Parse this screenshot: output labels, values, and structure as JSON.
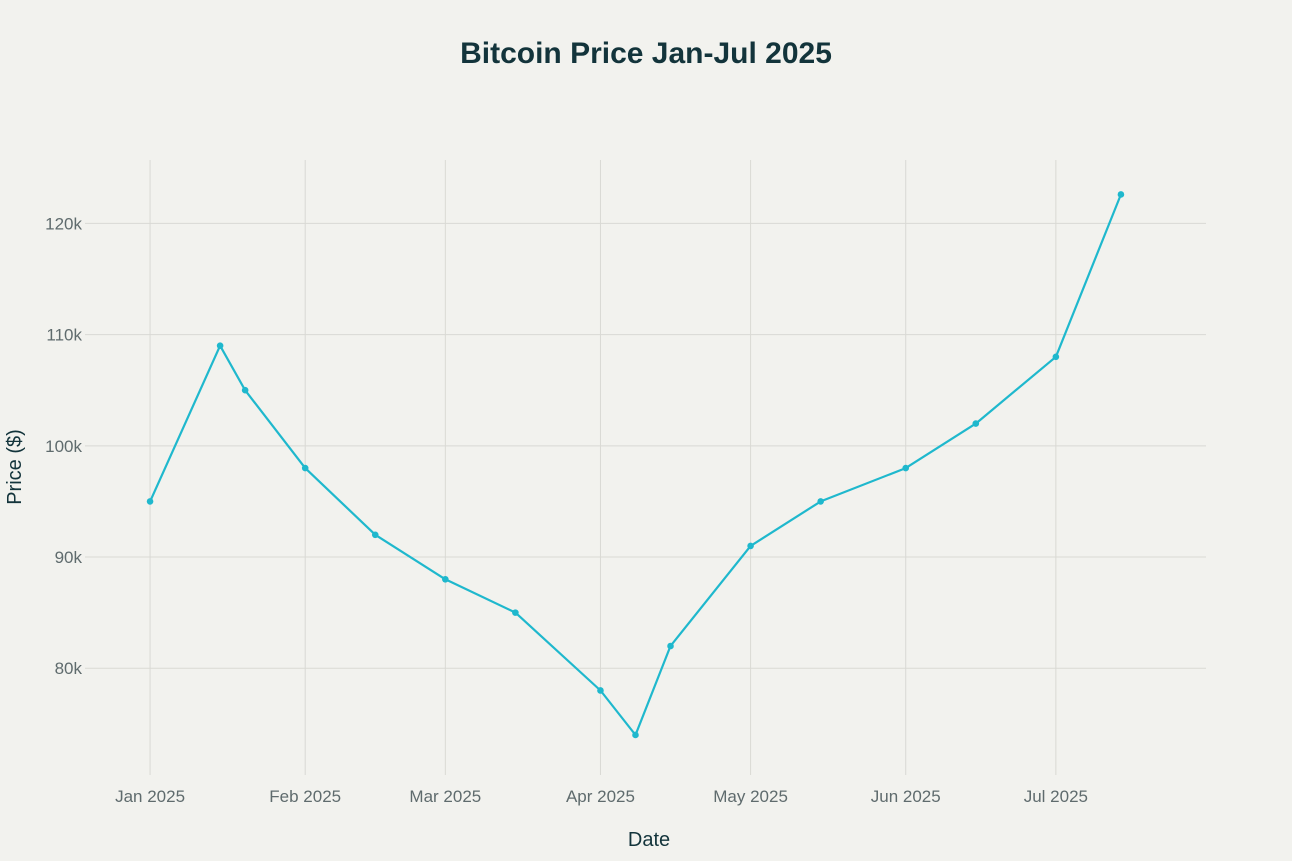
{
  "colors": {
    "background": "#f2f2ee",
    "series": "#1fb8cd",
    "grid": "#d9d9d4",
    "title": "#13343b",
    "tick": "#5f6b6d"
  },
  "chart_data": {
    "type": "line",
    "title": "Bitcoin Price Jan-Jul 2025",
    "xlabel": "Date",
    "ylabel": "Price ($)",
    "x_tick_labels": [
      {
        "date": "2025-01-01",
        "label": "Jan 2025"
      },
      {
        "date": "2025-02-01",
        "label": "Feb 2025"
      },
      {
        "date": "2025-03-01",
        "label": "Mar 2025"
      },
      {
        "date": "2025-04-01",
        "label": "Apr 2025"
      },
      {
        "date": "2025-05-01",
        "label": "May 2025"
      },
      {
        "date": "2025-06-01",
        "label": "Jun 2025"
      },
      {
        "date": "2025-07-01",
        "label": "Jul 2025"
      }
    ],
    "y_ticks": [
      {
        "value": 80000,
        "label": "80k"
      },
      {
        "value": 90000,
        "label": "90k"
      },
      {
        "value": 100000,
        "label": "100k"
      },
      {
        "value": 110000,
        "label": "110k"
      },
      {
        "value": 120000,
        "label": "120k"
      }
    ],
    "xlim": [
      "2024-12-19",
      "2025-07-31"
    ],
    "ylim": [
      70400,
      125700
    ],
    "grid": true,
    "series": [
      {
        "x": [
          "2025-01-01",
          "2025-01-15",
          "2025-01-20",
          "2025-02-01",
          "2025-02-15",
          "2025-03-01",
          "2025-03-15",
          "2025-04-01",
          "2025-04-08",
          "2025-04-15",
          "2025-05-01",
          "2025-05-15",
          "2025-06-01",
          "2025-06-15",
          "2025-07-01",
          "2025-07-14"
        ],
        "y": [
          95000,
          109000,
          105000,
          98000,
          92000,
          88000,
          85000,
          78000,
          74000,
          82000,
          91000,
          95000,
          98000,
          102000,
          108000,
          122600
        ]
      }
    ]
  }
}
